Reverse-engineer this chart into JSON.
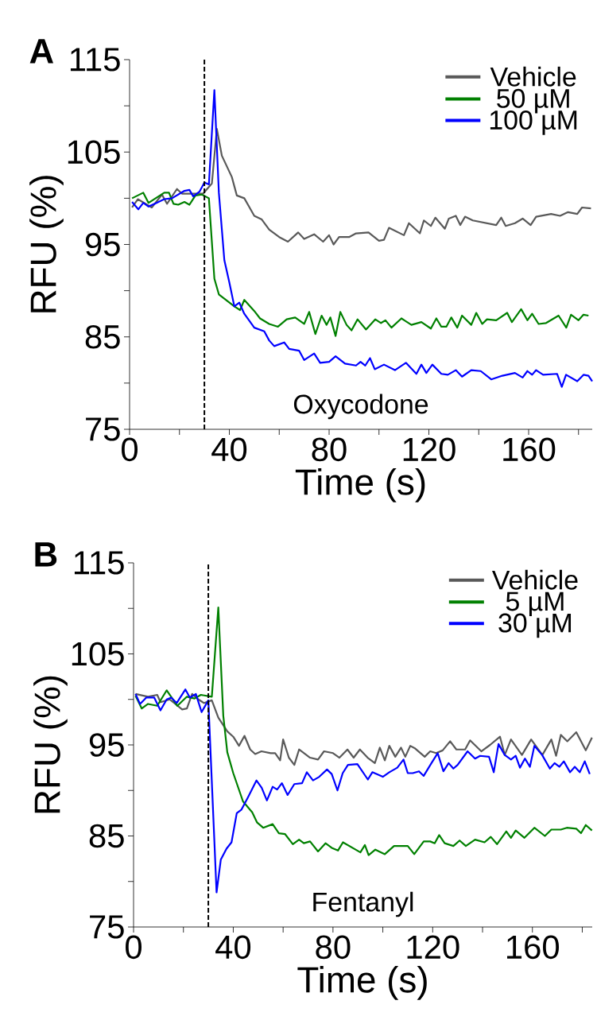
{
  "chart_data": [
    {
      "type": "line",
      "title": "A",
      "xlabel": "Time (s)",
      "ylabel": "RFU (%)",
      "annotations": [
        "Oxycodone"
      ],
      "xlim": [
        0,
        185.5
      ],
      "ylim": [
        75,
        115
      ],
      "xticks": [
        0,
        {
          "value": 20,
          "label": null
        },
        40,
        {
          "value": 60,
          "label": null
        },
        80,
        {
          "value": 100,
          "label": null
        },
        120,
        {
          "value": 140,
          "label": null
        },
        160,
        {
          "value": 180,
          "label": null
        }
      ],
      "yticks": [
        75,
        {
          "value": 80,
          "label": null
        },
        85,
        {
          "value": 90,
          "label": null
        },
        95,
        {
          "value": 100,
          "label": null
        },
        105,
        {
          "value": 110,
          "label": null
        },
        115
      ],
      "grid": false,
      "legend": "top right",
      "marker": "none",
      "line_style": "solid",
      "ref_lines": [
        {
          "axis": "x",
          "value": 30,
          "color": "#000000",
          "line_style": "dashed"
        }
      ],
      "series": [
        {
          "name": "Vehicle",
          "color": "#595959",
          "x": [
            1,
            3.3,
            8.9,
            13,
            15,
            19,
            21,
            29.5,
            33,
            35,
            37,
            41,
            43,
            46,
            50,
            53,
            56,
            60,
            63.5,
            67.6,
            70,
            74,
            77.6,
            80,
            81.8,
            84,
            88,
            90.8,
            95.8,
            100,
            102,
            104,
            110,
            112,
            116.4,
            118,
            120.8,
            122.6,
            126.4,
            128,
            130.8,
            132.6,
            134.5,
            137.6,
            147,
            149,
            150.8,
            154.5,
            157.6,
            160.8,
            163,
            169,
            172.6,
            175.8,
            179.5,
            181.4,
            185
          ],
          "values": [
            99.0,
            99.9,
            99.0,
            100.4,
            99.4,
            101,
            100.5,
            100.5,
            101.6,
            107.5,
            104.6,
            102.3,
            100.3,
            100,
            98.1,
            97.7,
            96.6,
            95.8,
            95.3,
            96.3,
            95.6,
            96.1,
            95.3,
            96,
            95,
            95.8,
            95.8,
            96.2,
            96.3,
            95.4,
            95.5,
            96.8,
            96,
            97.3,
            96.2,
            97.6,
            97,
            97.9,
            96.7,
            97.8,
            98.1,
            97.1,
            98,
            97.6,
            97.1,
            97.9,
            97,
            97.3,
            97.8,
            97.1,
            98,
            98.3,
            98.1,
            98.5,
            98.3,
            99,
            98.9
          ]
        },
        {
          "name": "50 µM",
          "color": "#008000",
          "x": [
            1,
            5.5,
            7.6,
            13.9,
            15.8,
            17.6,
            19.5,
            22,
            24,
            26.4,
            29,
            31.8,
            34,
            35.8,
            42,
            44.3,
            46,
            50,
            52.3,
            56,
            59.5,
            63,
            66.4,
            70,
            72,
            74.5,
            77,
            79,
            80.5,
            82.6,
            84.5,
            87,
            89,
            91.4,
            94.8,
            98.5,
            100.8,
            102.6,
            105,
            109,
            113,
            117,
            120.8,
            123,
            125,
            127,
            129,
            131.4,
            133.3,
            137,
            139,
            141.4,
            143.3,
            147,
            151.4,
            153.3,
            157,
            159.5,
            161.4,
            164,
            167,
            172,
            175.1,
            177,
            180,
            182,
            184
          ],
          "values": [
            100,
            100.6,
            99.5,
            100.6,
            100.6,
            99.4,
            99.3,
            99.6,
            99.3,
            100.3,
            100.4,
            100,
            91.3,
            89.6,
            88.3,
            87.9,
            89,
            87.8,
            87,
            86.4,
            86.1,
            86.9,
            87.1,
            86.4,
            87.7,
            85.3,
            87.3,
            86.3,
            87.1,
            85.1,
            87.7,
            86.3,
            85.7,
            86.9,
            85.8,
            86.9,
            86.5,
            86.8,
            86,
            87,
            86.3,
            86.6,
            85.9,
            87,
            86.1,
            86.1,
            87.1,
            86,
            87.3,
            86.3,
            87.6,
            86.4,
            86.9,
            86.8,
            87.6,
            86.6,
            88,
            86.8,
            87.5,
            86.4,
            86.5,
            87.3,
            86,
            87.4,
            86.8,
            87.4,
            87.3
          ]
        },
        {
          "name": "100 µM",
          "color": "#0000ff",
          "x": [
            1,
            3.5,
            5.5,
            7.6,
            10.8,
            13.9,
            17,
            22,
            24,
            25.5,
            28,
            30,
            31.8,
            34,
            35.8,
            38,
            40,
            42,
            44,
            46,
            50,
            54,
            56,
            58,
            62,
            64,
            68,
            70,
            74,
            76.4,
            80,
            82.6,
            86.4,
            90.8,
            92.6,
            94.5,
            96.4,
            98.3,
            102,
            106.4,
            110.8,
            115,
            117,
            119,
            121.4,
            125,
            127.6,
            130.8,
            133.3,
            137,
            140.8,
            145,
            149.5,
            154.5,
            157.6,
            159.5,
            161.4,
            163,
            165.8,
            171.4,
            173.3,
            175,
            179.5,
            182,
            184,
            185.5
          ],
          "values": [
            99.6,
            98.8,
            99.5,
            99.1,
            99.5,
            99.9,
            100,
            100.8,
            100.9,
            100.2,
            100.7,
            101.7,
            101.5,
            111.7,
            100.6,
            93.3,
            90.9,
            88.3,
            88.7,
            87.5,
            86,
            85.6,
            84.6,
            84,
            84.4,
            83.7,
            83.5,
            82.5,
            83.2,
            82.2,
            82.3,
            82.9,
            82.1,
            81.9,
            82.3,
            81.9,
            82.7,
            81.5,
            82,
            81.4,
            82.2,
            81,
            82,
            81.1,
            82,
            81,
            80.9,
            81.4,
            80.7,
            81.4,
            81.3,
            80.4,
            80.8,
            81.1,
            80.6,
            81.3,
            80.9,
            81.4,
            80.9,
            81,
            79.6,
            80.9,
            80.2,
            80.9,
            80.8,
            80.2
          ]
        }
      ]
    },
    {
      "type": "line",
      "title": "B",
      "xlabel": "Time (s)",
      "ylabel": "RFU (%)",
      "annotations": [
        "Fentanyl"
      ],
      "xlim": [
        0,
        184
      ],
      "ylim": [
        75,
        115
      ],
      "xticks": [
        0,
        {
          "value": 20,
          "label": null
        },
        40,
        {
          "value": 60,
          "label": null
        },
        80,
        {
          "value": 100,
          "label": null
        },
        120,
        {
          "value": 140,
          "label": null
        },
        160,
        {
          "value": 180,
          "label": null
        }
      ],
      "yticks": [
        75,
        {
          "value": 80,
          "label": null
        },
        85,
        {
          "value": 90,
          "label": null
        },
        95,
        {
          "value": 100,
          "label": null
        },
        105,
        {
          "value": 110,
          "label": null
        },
        115
      ],
      "grid": false,
      "legend": "top right",
      "marker": "none",
      "line_style": "solid",
      "ref_lines": [
        {
          "axis": "x",
          "value": 30,
          "color": "#000000",
          "line_style": "dashed"
        }
      ],
      "series": [
        {
          "name": "Vehicle",
          "color": "#595959",
          "x": [
            0.8,
            5.8,
            9.5,
            10.8,
            14.5,
            19.5,
            21.4,
            23.5,
            26,
            28.3,
            31.4,
            34,
            37.6,
            40,
            42.3,
            44.5,
            46.8,
            48.8,
            51.3,
            55,
            56.8,
            58.8,
            60,
            62.3,
            64.5,
            66.4,
            70.8,
            74,
            76.4,
            80,
            82.6,
            85.8,
            88.3,
            90.8,
            93.9,
            96.8,
            98.8,
            100.8,
            102.6,
            105,
            107.3,
            109,
            111,
            113,
            116.8,
            119,
            121.4,
            124,
            127,
            129.5,
            133,
            135,
            139.5,
            143,
            147,
            148.9,
            151.4,
            155.8,
            159.5,
            164,
            167.6,
            169.5,
            171.4,
            174,
            177.6,
            181.4,
            183.9
          ],
          "values": [
            100.6,
            100.3,
            100.5,
            99.7,
            100,
            98.9,
            99,
            100.6,
            100,
            99.6,
            99.9,
            98,
            96.5,
            95.9,
            94.9,
            96,
            94.5,
            94,
            94.3,
            94.1,
            94.1,
            93.3,
            95.6,
            93.6,
            92.8,
            94.5,
            93.6,
            93.4,
            94.3,
            94.1,
            93.6,
            94.5,
            93.6,
            94.5,
            93.6,
            93,
            94.7,
            93.3,
            94.9,
            93.7,
            94.7,
            93.7,
            94.9,
            94.6,
            93.7,
            94.3,
            94.1,
            94.4,
            95.4,
            94.5,
            94.5,
            95.5,
            94.3,
            95,
            95.9,
            93.9,
            95.6,
            93.9,
            95.6,
            93.9,
            95.6,
            93.8,
            96.1,
            95.4,
            96.4,
            94.4,
            95.8
          ]
        },
        {
          "name": "5 µM",
          "color": "#008000",
          "x": [
            0.8,
            3.3,
            5.8,
            9.5,
            13.3,
            17.6,
            21.4,
            24.5,
            27,
            31.4,
            34,
            36,
            37.6,
            40,
            43.9,
            47.6,
            49.5,
            52,
            55.8,
            58.3,
            60.8,
            63.9,
            66.4,
            68.3,
            70.8,
            74,
            77,
            79.5,
            82,
            84,
            91,
            92.8,
            94.3,
            97,
            100.8,
            104.5,
            110,
            112.6,
            116.4,
            119,
            120.8,
            122.6,
            124.8,
            128.3,
            130.8,
            133.3,
            137,
            140.8,
            143.3,
            145.8,
            149.5,
            151.4,
            153.3,
            156.8,
            160.8,
            165,
            167.6,
            171.4,
            173.8,
            177.6,
            179.5,
            181.4,
            183.9
          ],
          "values": [
            100.4,
            99,
            99.5,
            99.3,
            101,
            99.3,
            100.3,
            100.1,
            100.5,
            100.3,
            110.1,
            98.2,
            94.2,
            91.9,
            88.8,
            87.6,
            86.5,
            85.9,
            86.3,
            85.3,
            85.2,
            84.1,
            84.6,
            84.2,
            84.4,
            83.3,
            84.2,
            83.7,
            83.4,
            84.3,
            83.2,
            84,
            82.9,
            83.5,
            83,
            83.9,
            83.9,
            83,
            84.4,
            84.4,
            84.2,
            85.1,
            84.2,
            83.9,
            84.5,
            83.9,
            84.6,
            84.3,
            84.9,
            84.1,
            85.5,
            84.8,
            85.6,
            84.8,
            85.9,
            85,
            85.7,
            85.7,
            85.9,
            85.8,
            85.3,
            86.2,
            85.6
          ]
        },
        {
          "name": "30 µM",
          "color": "#0000ff",
          "x": [
            0.8,
            2.6,
            5.1,
            8.3,
            10.8,
            13.3,
            15.1,
            17.3,
            20.8,
            22.6,
            25,
            27.3,
            30,
            33.3,
            35,
            37.3,
            39.3,
            41.4,
            43.3,
            45.8,
            49.3,
            51.4,
            53.5,
            55.8,
            57.6,
            59.5,
            61.8,
            64.5,
            67.6,
            69.5,
            72,
            74.5,
            77.6,
            79.5,
            81.8,
            83.9,
            86,
            89.8,
            94,
            95.8,
            100,
            102.6,
            105.8,
            108.3,
            110,
            112,
            114.5,
            116.4,
            119.5,
            122,
            124.3,
            126.4,
            128.3,
            130,
            134,
            137,
            139,
            142.6,
            144.5,
            146.4,
            148.9,
            151.4,
            153.3,
            155,
            157,
            159,
            160.8,
            163.9,
            167,
            168.9,
            170.8,
            172.6,
            175.1,
            177,
            179,
            181,
            183
          ],
          "values": [
            100.6,
            99.5,
            100.2,
            100.2,
            98.8,
            100,
            100.2,
            99.6,
            101.1,
            100.2,
            100.6,
            98.6,
            99.9,
            78.8,
            82.4,
            83.6,
            84.3,
            87.5,
            87.9,
            89.2,
            91.1,
            90.3,
            88.9,
            90.4,
            90.1,
            90.8,
            89.5,
            90.7,
            90.8,
            92,
            91.1,
            91.5,
            92.3,
            91.8,
            90,
            91.9,
            92.8,
            92.9,
            91.2,
            92,
            91.5,
            92,
            92.5,
            93.4,
            91.9,
            91.9,
            92.1,
            91.6,
            93,
            94.1,
            92.1,
            93,
            92.4,
            92.8,
            94.3,
            93.5,
            93.8,
            93.7,
            92,
            95.1,
            93.9,
            93.4,
            93.8,
            92.5,
            93.5,
            92.6,
            94.9,
            93.9,
            92.4,
            93,
            92.6,
            93.2,
            92,
            92.6,
            92,
            93.2,
            91.8
          ]
        }
      ]
    }
  ]
}
